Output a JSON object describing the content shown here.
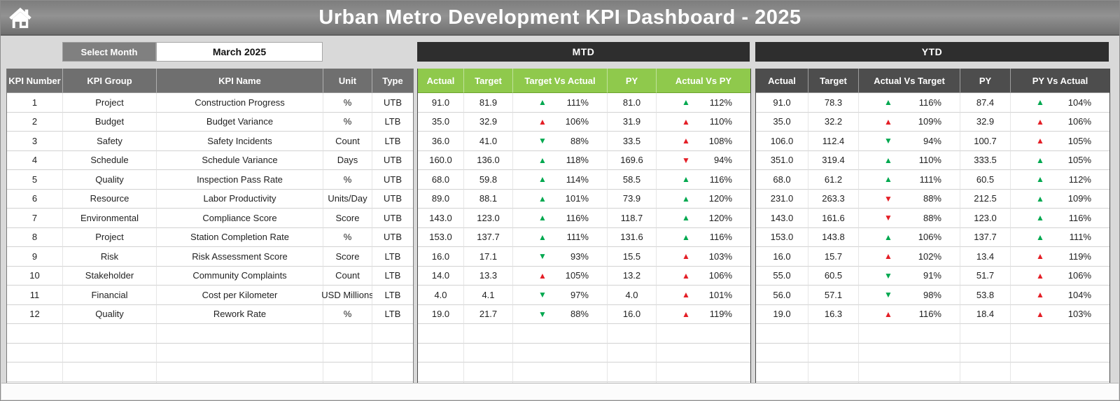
{
  "window": {
    "title": "Urban Metro Development KPI Dashboard - 2025"
  },
  "controls": {
    "select_month_label": "Select Month",
    "selected_month": "March 2025"
  },
  "sections": {
    "mtd_label": "MTD",
    "ytd_label": "YTD"
  },
  "colors": {
    "mtd_header_green": "#8fc94c",
    "ytd_header_gray": "#4d4d4d",
    "info_header_gray": "#6f6f6f",
    "section_bar_dark": "#2e2e2e",
    "up_green": "#00a84f",
    "down_red": "#e41e26"
  },
  "table": {
    "info_headers": [
      "KPI Number",
      "KPI Group",
      "KPI Name",
      "Unit",
      "Type"
    ],
    "mtd_headers": [
      "Actual",
      "Target",
      "Target Vs Actual",
      "PY",
      "Actual Vs PY"
    ],
    "ytd_headers": [
      "Actual",
      "Target",
      "Actual Vs Target",
      "PY",
      "PY Vs Actual"
    ],
    "empty_rows": 4,
    "rows": [
      {
        "num": "1",
        "group": "Project",
        "name": "Construction Progress",
        "unit": "%",
        "type": "UTB",
        "mtd": {
          "actual": "91.0",
          "target": "81.9",
          "cmp1": {
            "dir": "up",
            "color": "green",
            "pct": "111%"
          },
          "py": "81.0",
          "cmp2": {
            "dir": "up",
            "color": "green",
            "pct": "112%"
          }
        },
        "ytd": {
          "actual": "91.0",
          "target": "78.3",
          "cmp1": {
            "dir": "up",
            "color": "green",
            "pct": "116%"
          },
          "py": "87.4",
          "cmp2": {
            "dir": "up",
            "color": "green",
            "pct": "104%"
          }
        }
      },
      {
        "num": "2",
        "group": "Budget",
        "name": "Budget Variance",
        "unit": "%",
        "type": "LTB",
        "mtd": {
          "actual": "35.0",
          "target": "32.9",
          "cmp1": {
            "dir": "up",
            "color": "red",
            "pct": "106%"
          },
          "py": "31.9",
          "cmp2": {
            "dir": "up",
            "color": "red",
            "pct": "110%"
          }
        },
        "ytd": {
          "actual": "35.0",
          "target": "32.2",
          "cmp1": {
            "dir": "up",
            "color": "red",
            "pct": "109%"
          },
          "py": "32.9",
          "cmp2": {
            "dir": "up",
            "color": "red",
            "pct": "106%"
          }
        }
      },
      {
        "num": "3",
        "group": "Safety",
        "name": "Safety Incidents",
        "unit": "Count",
        "type": "LTB",
        "mtd": {
          "actual": "36.0",
          "target": "41.0",
          "cmp1": {
            "dir": "down",
            "color": "green",
            "pct": "88%"
          },
          "py": "33.5",
          "cmp2": {
            "dir": "up",
            "color": "red",
            "pct": "108%"
          }
        },
        "ytd": {
          "actual": "106.0",
          "target": "112.4",
          "cmp1": {
            "dir": "down",
            "color": "green",
            "pct": "94%"
          },
          "py": "100.7",
          "cmp2": {
            "dir": "up",
            "color": "red",
            "pct": "105%"
          }
        }
      },
      {
        "num": "4",
        "group": "Schedule",
        "name": "Schedule Variance",
        "unit": "Days",
        "type": "UTB",
        "mtd": {
          "actual": "160.0",
          "target": "136.0",
          "cmp1": {
            "dir": "up",
            "color": "green",
            "pct": "118%"
          },
          "py": "169.6",
          "cmp2": {
            "dir": "down",
            "color": "red",
            "pct": "94%"
          }
        },
        "ytd": {
          "actual": "351.0",
          "target": "319.4",
          "cmp1": {
            "dir": "up",
            "color": "green",
            "pct": "110%"
          },
          "py": "333.5",
          "cmp2": {
            "dir": "up",
            "color": "green",
            "pct": "105%"
          }
        }
      },
      {
        "num": "5",
        "group": "Quality",
        "name": "Inspection Pass Rate",
        "unit": "%",
        "type": "UTB",
        "mtd": {
          "actual": "68.0",
          "target": "59.8",
          "cmp1": {
            "dir": "up",
            "color": "green",
            "pct": "114%"
          },
          "py": "58.5",
          "cmp2": {
            "dir": "up",
            "color": "green",
            "pct": "116%"
          }
        },
        "ytd": {
          "actual": "68.0",
          "target": "61.2",
          "cmp1": {
            "dir": "up",
            "color": "green",
            "pct": "111%"
          },
          "py": "60.5",
          "cmp2": {
            "dir": "up",
            "color": "green",
            "pct": "112%"
          }
        }
      },
      {
        "num": "6",
        "group": "Resource",
        "name": "Labor Productivity",
        "unit": "Units/Day",
        "type": "UTB",
        "mtd": {
          "actual": "89.0",
          "target": "88.1",
          "cmp1": {
            "dir": "up",
            "color": "green",
            "pct": "101%"
          },
          "py": "73.9",
          "cmp2": {
            "dir": "up",
            "color": "green",
            "pct": "120%"
          }
        },
        "ytd": {
          "actual": "231.0",
          "target": "263.3",
          "cmp1": {
            "dir": "down",
            "color": "red",
            "pct": "88%"
          },
          "py": "212.5",
          "cmp2": {
            "dir": "up",
            "color": "green",
            "pct": "109%"
          }
        }
      },
      {
        "num": "7",
        "group": "Environmental",
        "name": "Compliance Score",
        "unit": "Score",
        "type": "UTB",
        "mtd": {
          "actual": "143.0",
          "target": "123.0",
          "cmp1": {
            "dir": "up",
            "color": "green",
            "pct": "116%"
          },
          "py": "118.7",
          "cmp2": {
            "dir": "up",
            "color": "green",
            "pct": "120%"
          }
        },
        "ytd": {
          "actual": "143.0",
          "target": "161.6",
          "cmp1": {
            "dir": "down",
            "color": "red",
            "pct": "88%"
          },
          "py": "123.0",
          "cmp2": {
            "dir": "up",
            "color": "green",
            "pct": "116%"
          }
        }
      },
      {
        "num": "8",
        "group": "Project",
        "name": "Station Completion Rate",
        "unit": "%",
        "type": "UTB",
        "mtd": {
          "actual": "153.0",
          "target": "137.7",
          "cmp1": {
            "dir": "up",
            "color": "green",
            "pct": "111%"
          },
          "py": "131.6",
          "cmp2": {
            "dir": "up",
            "color": "green",
            "pct": "116%"
          }
        },
        "ytd": {
          "actual": "153.0",
          "target": "143.8",
          "cmp1": {
            "dir": "up",
            "color": "green",
            "pct": "106%"
          },
          "py": "137.7",
          "cmp2": {
            "dir": "up",
            "color": "green",
            "pct": "111%"
          }
        }
      },
      {
        "num": "9",
        "group": "Risk",
        "name": "Risk Assessment Score",
        "unit": "Score",
        "type": "LTB",
        "mtd": {
          "actual": "16.0",
          "target": "17.1",
          "cmp1": {
            "dir": "down",
            "color": "green",
            "pct": "93%"
          },
          "py": "15.5",
          "cmp2": {
            "dir": "up",
            "color": "red",
            "pct": "103%"
          }
        },
        "ytd": {
          "actual": "16.0",
          "target": "15.7",
          "cmp1": {
            "dir": "up",
            "color": "red",
            "pct": "102%"
          },
          "py": "13.4",
          "cmp2": {
            "dir": "up",
            "color": "red",
            "pct": "119%"
          }
        }
      },
      {
        "num": "10",
        "group": "Stakeholder",
        "name": "Community Complaints",
        "unit": "Count",
        "type": "LTB",
        "mtd": {
          "actual": "14.0",
          "target": "13.3",
          "cmp1": {
            "dir": "up",
            "color": "red",
            "pct": "105%"
          },
          "py": "13.2",
          "cmp2": {
            "dir": "up",
            "color": "red",
            "pct": "106%"
          }
        },
        "ytd": {
          "actual": "55.0",
          "target": "60.5",
          "cmp1": {
            "dir": "down",
            "color": "green",
            "pct": "91%"
          },
          "py": "51.7",
          "cmp2": {
            "dir": "up",
            "color": "red",
            "pct": "106%"
          }
        }
      },
      {
        "num": "11",
        "group": "Financial",
        "name": "Cost per Kilometer",
        "unit": "USD Millions",
        "type": "LTB",
        "mtd": {
          "actual": "4.0",
          "target": "4.1",
          "cmp1": {
            "dir": "down",
            "color": "green",
            "pct": "97%"
          },
          "py": "4.0",
          "cmp2": {
            "dir": "up",
            "color": "red",
            "pct": "101%"
          }
        },
        "ytd": {
          "actual": "56.0",
          "target": "57.1",
          "cmp1": {
            "dir": "down",
            "color": "green",
            "pct": "98%"
          },
          "py": "53.8",
          "cmp2": {
            "dir": "up",
            "color": "red",
            "pct": "104%"
          }
        }
      },
      {
        "num": "12",
        "group": "Quality",
        "name": "Rework Rate",
        "unit": "%",
        "type": "LTB",
        "mtd": {
          "actual": "19.0",
          "target": "21.7",
          "cmp1": {
            "dir": "down",
            "color": "green",
            "pct": "88%"
          },
          "py": "16.0",
          "cmp2": {
            "dir": "up",
            "color": "red",
            "pct": "119%"
          }
        },
        "ytd": {
          "actual": "19.0",
          "target": "16.3",
          "cmp1": {
            "dir": "up",
            "color": "red",
            "pct": "116%"
          },
          "py": "18.4",
          "cmp2": {
            "dir": "up",
            "color": "red",
            "pct": "103%"
          }
        }
      }
    ]
  }
}
